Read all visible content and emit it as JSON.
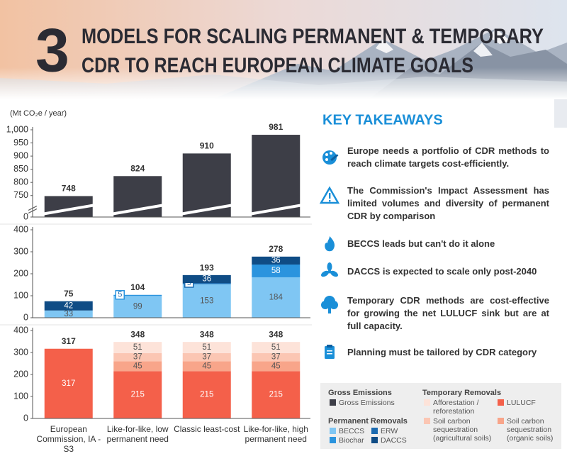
{
  "header": {
    "number": "3",
    "title_lines": [
      "MODELS FOR SCALING PERMANENT & TEMPORARY",
      "CDR TO REACH EUROPEAN CLIMATE GOALS"
    ]
  },
  "chart_data": [
    {
      "type": "bar",
      "ylabel": "(Mt CO₂e / year)",
      "ylim": [
        725,
        1000
      ],
      "yticks": [
        0,
        750,
        800,
        850,
        900,
        950,
        {
          "value": 1000,
          "label": "1,000"
        }
      ],
      "axis_break": true,
      "series": [
        {
          "name": "Gross Emissions",
          "color": "#3d3e47",
          "values": [
            748,
            824,
            910,
            981
          ]
        }
      ]
    },
    {
      "type": "stacked_bar",
      "ylim": [
        0,
        400
      ],
      "yticks": [
        0,
        100,
        200,
        300,
        400
      ],
      "totals": [
        75,
        104,
        193,
        278
      ],
      "series": [
        {
          "name": "BECCS",
          "color": "#7fc6f3",
          "values": [
            33,
            99,
            153,
            184
          ]
        },
        {
          "name": "Biochar",
          "color": "#2b94de",
          "values": [
            null,
            5,
            null,
            58
          ]
        },
        {
          "name": "ERW",
          "color": "#1c6bb0",
          "values": [
            null,
            null,
            5,
            null
          ]
        },
        {
          "name": "DACCS",
          "color": "#0f4c85",
          "values": [
            42,
            null,
            36,
            36
          ]
        }
      ]
    },
    {
      "type": "stacked_bar",
      "ylim": [
        0,
        400
      ],
      "yticks": [
        0,
        100,
        200,
        300,
        400
      ],
      "totals": [
        317,
        348,
        348,
        348
      ],
      "categories": [
        "European Commission, IA - S3",
        "Like-for-like, low permanent need",
        "Classic least-cost",
        "Like-for-like, high permanent need"
      ],
      "series": [
        {
          "name": "LULUCF",
          "color": "#f4604a",
          "values": [
            317,
            215,
            215,
            215
          ]
        },
        {
          "name": "Soil carbon sequestration (organic soils)",
          "color": "#f8a58a",
          "values": [
            null,
            45,
            45,
            45
          ]
        },
        {
          "name": "Soil carbon sequestration (agricultural soils)",
          "color": "#fbc6b3",
          "values": [
            null,
            37,
            37,
            37
          ]
        },
        {
          "name": "Afforestation / reforestation",
          "color": "#fde3d9",
          "values": [
            null,
            51,
            51,
            51
          ]
        }
      ]
    }
  ],
  "takeaways": {
    "title": "KEY TAKEAWAYS",
    "items": [
      "Europe needs a portfolio of CDR methods to reach climate targets cost-efficiently.",
      "The Commission's Impact Assessment has limited volumes and diversity of permanent CDR by comparison",
      "BECCS leads but can't do it alone",
      "DACCS is expected to scale only post-2040",
      "Temporary CDR methods are cost-effective for growing the net LULUCF sink but are at full capacity.",
      "Planning must be tailored by CDR category"
    ]
  },
  "legend": {
    "groups": [
      "Gross Emissions",
      "Permanent Removals",
      "Temporary Removals"
    ]
  }
}
